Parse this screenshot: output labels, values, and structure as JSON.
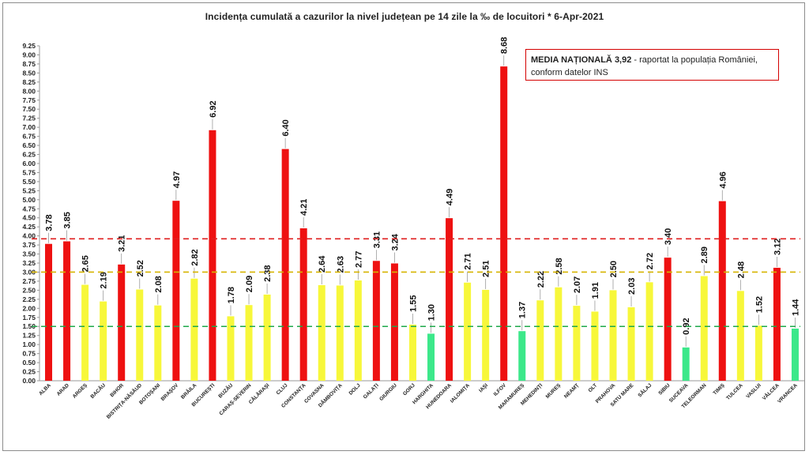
{
  "chart_data": {
    "type": "bar",
    "title": "Incidența cumulată a cazurilor la nivel județean pe 14 zile la ‰ de locuitori *   6-Apr-2021",
    "categories": [
      "ALBA",
      "ARAD",
      "ARGEȘ",
      "BACĂU",
      "BIHOR",
      "BISTRIȚA-NĂSĂUD",
      "BOTOȘANI",
      "BRAȘOV",
      "BRĂILA",
      "BUCUREȘTI",
      "BUZĂU",
      "CARAȘ-SEVERIN",
      "CĂLĂRAȘI",
      "CLUJ",
      "CONSTANȚA",
      "COVASNA",
      "DÂMBOVIȚA",
      "DOLJ",
      "GALAȚI",
      "GIURGIU",
      "GORJ",
      "HARGHITA",
      "HUNEDOARA",
      "IALOMIȚA",
      "IAȘI",
      "ILFOV",
      "MARAMUREȘ",
      "MEHEDINȚI",
      "MUREȘ",
      "NEAMȚ",
      "OLT",
      "PRAHOVA",
      "SATU MARE",
      "SĂLAJ",
      "SIBIU",
      "SUCEAVA",
      "TELEORMAN",
      "TIMIȘ",
      "TULCEA",
      "VASLUI",
      "VÂLCEA",
      "VRANCEA"
    ],
    "values": [
      3.78,
      3.85,
      2.65,
      2.19,
      3.21,
      2.52,
      2.08,
      4.97,
      2.82,
      6.92,
      1.78,
      2.09,
      2.38,
      6.4,
      4.21,
      2.64,
      2.63,
      2.77,
      3.31,
      3.24,
      1.55,
      1.3,
      4.49,
      2.71,
      2.51,
      8.68,
      1.37,
      2.22,
      2.58,
      2.07,
      1.91,
      2.5,
      2.03,
      2.72,
      3.4,
      0.92,
      2.89,
      4.96,
      2.48,
      1.52,
      3.12,
      1.44
    ],
    "data_labels": [
      "3.78",
      "3.85",
      "2.65",
      "2.19",
      "3.21",
      "2.52",
      "2.08",
      "4.97",
      "2.82",
      "6.92",
      "1.78",
      "2.09",
      "2.38",
      "6.40",
      "4.21",
      "2.64",
      "2.63",
      "2.77",
      "3.31",
      "3.24",
      "1.55",
      "1.30",
      "4.49",
      "2.71",
      "2.51",
      "8.68",
      "1.37",
      "2.22",
      "2.58",
      "2.07",
      "1.91",
      "2.50",
      "2.03",
      "2.72",
      "3.40",
      "0.92",
      "2.89",
      "4.96",
      "2.48",
      "1.52",
      "3.12",
      "1.44"
    ],
    "ylim": [
      0,
      9.25
    ],
    "ytick_step": 0.25,
    "reference_lines": [
      {
        "value": 3.92,
        "color": "#e02020"
      },
      {
        "value": 3.0,
        "color": "#d6b400"
      },
      {
        "value": 1.5,
        "color": "#1ea84a"
      }
    ],
    "colors": {
      "red": "#ee1111",
      "yellow": "#f7f73a",
      "green": "#3ce88a"
    },
    "xlabel": "",
    "ylabel": "",
    "grid": false
  },
  "note": {
    "label": "MEDIA NAȚIONALĂ",
    "value": "3,92",
    "text_line1": " - raportat la populația României,",
    "text_line2": "conform datelor INS"
  }
}
